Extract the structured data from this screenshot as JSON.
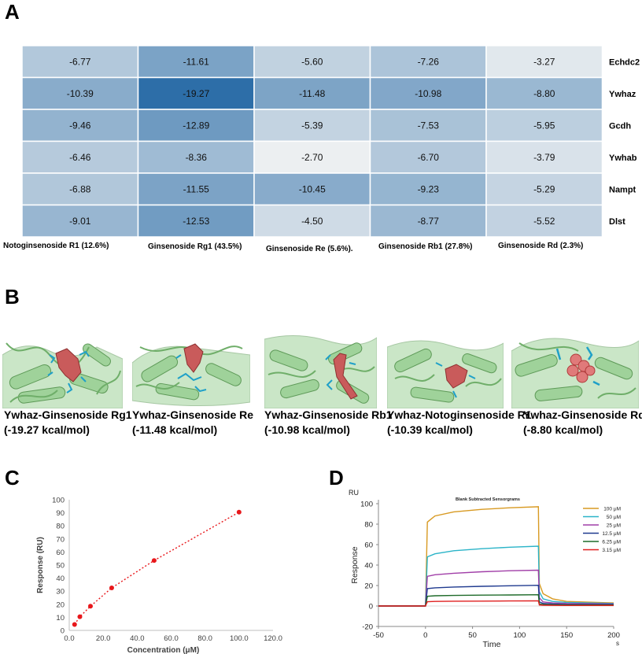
{
  "panels": {
    "a": "A",
    "b": "B",
    "c": "C",
    "d": "D"
  },
  "heatmap": {
    "columns": [
      "Notoginsenoside R1 (12.6%)",
      "Ginsenoside Rg1 (43.5%)",
      "Ginsenoside Re (5.6%).",
      "Ginsenoside Rb1 (27.8%)",
      "Ginsenoside Rd (2.3%)"
    ],
    "rows": [
      "Echdc2",
      "Ywhaz",
      "Gcdh",
      "Ywhab",
      "Nampt",
      "Dlst"
    ],
    "values": [
      [
        "-6.77",
        "-11.61",
        "-5.60",
        "-7.26",
        "-3.27"
      ],
      [
        "-10.39",
        "-19.27",
        "-11.48",
        "-10.98",
        "-8.80"
      ],
      [
        "-9.46",
        "-12.89",
        "-5.39",
        "-7.53",
        "-5.95"
      ],
      [
        "-6.46",
        "-8.36",
        "-2.70",
        "-6.70",
        "-3.79"
      ],
      [
        "-6.88",
        "-11.55",
        "-10.45",
        "-9.23",
        "-5.29"
      ],
      [
        "-9.01",
        "-12.53",
        "-4.50",
        "-8.77",
        "-5.52"
      ]
    ],
    "color_low": "#eceff1",
    "color_high": "#2d6ea8"
  },
  "docking": [
    {
      "name": "Ywhaz-Ginsenoside Rg1",
      "energy": "(-19.27  kcal/mol)"
    },
    {
      "name": "Ywhaz-Ginsenoside Re",
      "energy": "(-11.48 kcal/mol)"
    },
    {
      "name": "Ywhaz-Ginsenoside Rb1",
      "energy": "(-10.98 kcal/mol)"
    },
    {
      "name": "Ywhaz-Notoginsenoside R1",
      "energy": "(-10.39 kcal/mol)"
    },
    {
      "name": "Ywhaz-Ginsenoside Rd",
      "energy": "(-8.80 kcal/mol)"
    }
  ],
  "chart_data": [
    {
      "type": "scatter",
      "title": "",
      "xlabel": "Concentration (μM)",
      "ylabel": "Response (RU)",
      "xlim": [
        0,
        120
      ],
      "ylim": [
        0,
        100
      ],
      "xticks": [
        "0.0",
        "20.0",
        "40.0",
        "60.0",
        "80.0",
        "100.0",
        "120.0"
      ],
      "yticks": [
        "0",
        "10",
        "20",
        "30",
        "40",
        "50",
        "60",
        "70",
        "80",
        "90",
        "100"
      ],
      "x": [
        3.15,
        6.25,
        12.5,
        25,
        50,
        100
      ],
      "y": [
        4.5,
        10.5,
        18.5,
        32.5,
        53.5,
        90.5
      ],
      "point_color": "#e8171b",
      "fit_line": "dotted"
    },
    {
      "type": "line",
      "title": "Blank Subtracted Sensorgrams",
      "unit_label": "RU",
      "xlabel": "Time",
      "x_unit": "s",
      "ylabel": "Response",
      "xlim": [
        -50,
        200
      ],
      "ylim": [
        -20,
        100
      ],
      "xticks": [
        "-50",
        "0",
        "50",
        "100",
        "150",
        "200"
      ],
      "yticks": [
        "-20",
        "0",
        "20",
        "40",
        "60",
        "80",
        "100"
      ],
      "injection_start": 0,
      "injection_end": 120,
      "series": [
        {
          "name": "100 μM",
          "color": "#d89a22",
          "x": [
            -50,
            0,
            2,
            10,
            30,
            60,
            90,
            120,
            121,
            125,
            135,
            150,
            200
          ],
          "y": [
            0,
            0,
            82,
            88,
            92,
            94.5,
            96,
            97,
            22,
            12,
            7,
            4.5,
            3
          ]
        },
        {
          "name": "50 μM",
          "color": "#2bb4c8",
          "x": [
            -50,
            0,
            2,
            10,
            30,
            60,
            90,
            120,
            121,
            125,
            135,
            150,
            200
          ],
          "y": [
            0,
            0,
            48,
            51,
            54,
            56,
            57.5,
            58.5,
            14,
            7,
            4.5,
            3.5,
            2.5
          ]
        },
        {
          "name": "25 μM",
          "color": "#a13fa8",
          "x": [
            -50,
            0,
            2,
            10,
            30,
            60,
            90,
            120,
            121,
            125,
            135,
            150,
            200
          ],
          "y": [
            0,
            0,
            29,
            30.5,
            32,
            33.5,
            34.5,
            35,
            8,
            4,
            3,
            2.5,
            2
          ]
        },
        {
          "name": "12.5 μM",
          "color": "#1f3a8f",
          "x": [
            -50,
            0,
            2,
            10,
            30,
            60,
            90,
            120,
            121,
            125,
            135,
            150,
            200
          ],
          "y": [
            0,
            0,
            17,
            17.8,
            18.5,
            19.2,
            19.8,
            20.2,
            4,
            2.5,
            2,
            1.5,
            1.5
          ]
        },
        {
          "name": "6.25 μM",
          "color": "#1f6b2a",
          "x": [
            -50,
            0,
            2,
            10,
            30,
            60,
            90,
            120,
            121,
            125,
            135,
            150,
            200
          ],
          "y": [
            0,
            0,
            9.5,
            10,
            10.3,
            10.6,
            10.8,
            11,
            2,
            1.5,
            1.2,
            1,
            1
          ]
        },
        {
          "name": "3.15 μM",
          "color": "#e01f1f",
          "x": [
            -50,
            0,
            2,
            10,
            30,
            60,
            90,
            120,
            121,
            125,
            135,
            150,
            200
          ],
          "y": [
            0,
            0,
            4.2,
            4.5,
            4.7,
            4.8,
            4.9,
            5,
            1,
            0.8,
            0.6,
            0.5,
            0.5
          ]
        }
      ]
    }
  ]
}
